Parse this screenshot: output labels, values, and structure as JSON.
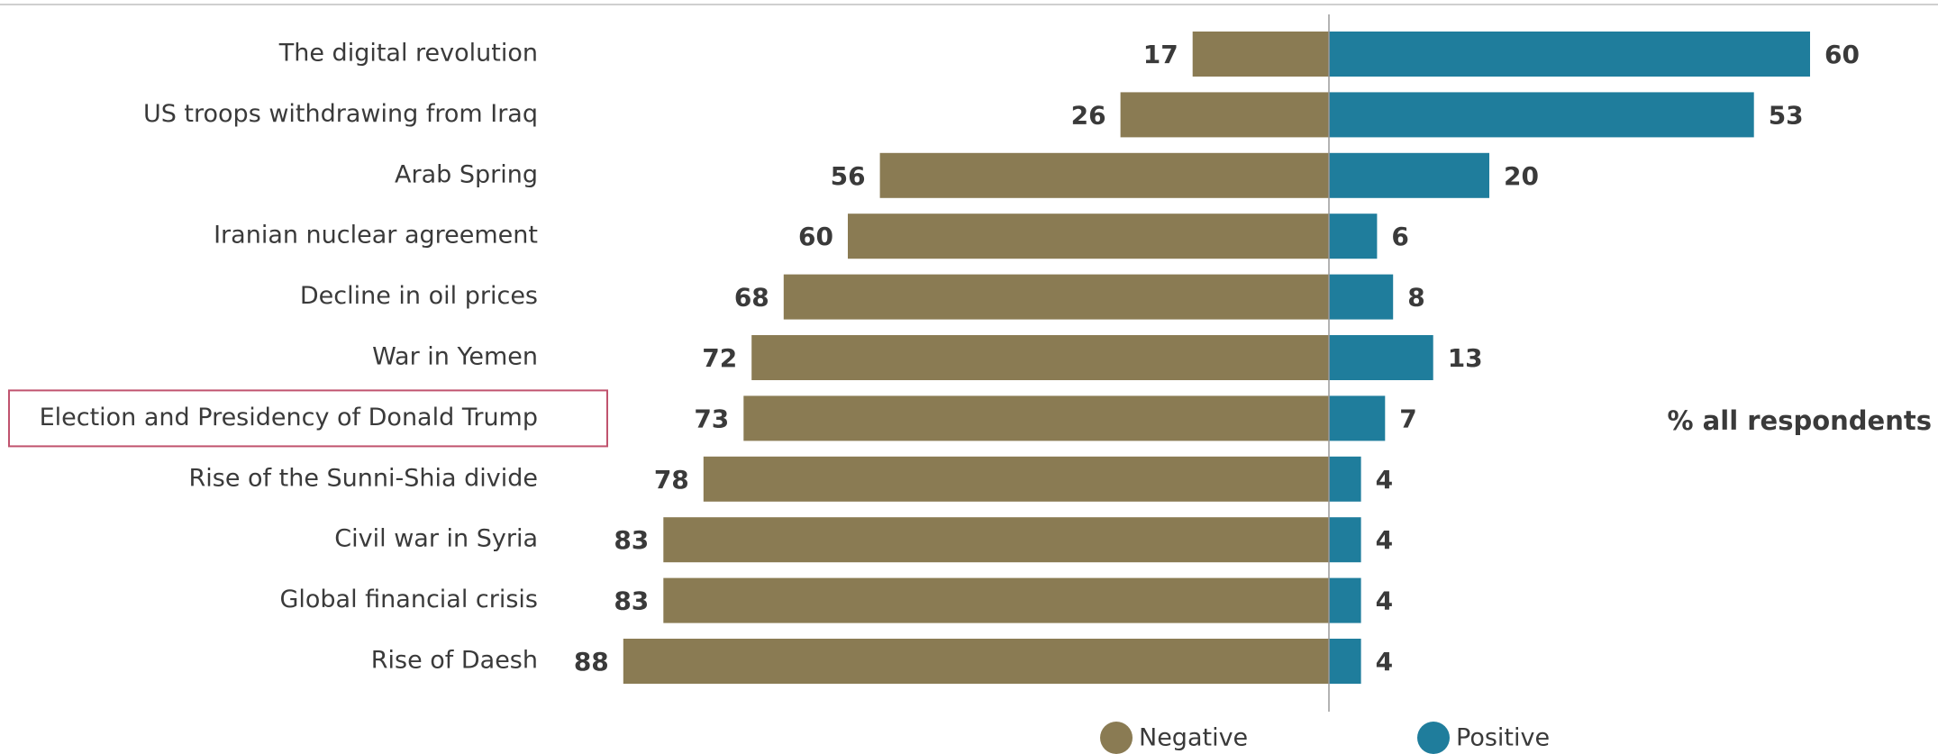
{
  "chart_data": {
    "type": "diverging-bar",
    "categories": [
      "The digital revolution",
      "US troops withdrawing from Iraq",
      "Arab Spring",
      "Iranian nuclear agreement",
      "Decline in oil prices",
      "War in Yemen",
      "Election and Presidency of Donald Trump",
      "Rise of the Sunni-Shia divide",
      "Civil war in Syria",
      "Global financial crisis",
      "Rise of Daesh"
    ],
    "series": [
      {
        "name": "Negative",
        "color": "#8a7b53",
        "values": [
          17,
          26,
          56,
          60,
          68,
          72,
          73,
          78,
          83,
          83,
          88
        ]
      },
      {
        "name": "Positive",
        "color": "#1f7d9c",
        "values": [
          60,
          53,
          20,
          6,
          8,
          13,
          7,
          4,
          4,
          4,
          4
        ]
      }
    ],
    "annotation": "% all respondents",
    "highlight": 6
  }
}
